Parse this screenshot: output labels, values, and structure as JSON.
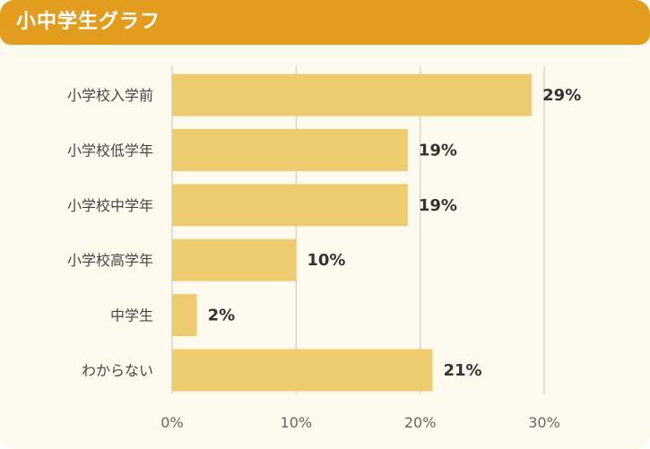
{
  "header": {
    "title": "小中学生グラフ"
  },
  "colors": {
    "accent": "#e29d1f",
    "bar": "#efcb70",
    "background": "#fefbee",
    "grid": "#d9d5c8"
  },
  "chart_data": {
    "type": "bar",
    "orientation": "horizontal",
    "categories": [
      "小学校入学前",
      "小学校低学年",
      "小学校中学年",
      "小学校高学年",
      "中学生",
      "わからない"
    ],
    "values": [
      29,
      19,
      19,
      10,
      2,
      21
    ],
    "value_labels": [
      "29%",
      "19%",
      "19%",
      "10%",
      "2%",
      "21%"
    ],
    "xlim": [
      0,
      30
    ],
    "xticks": [
      0,
      10,
      20,
      30
    ],
    "xtick_labels": [
      "0%",
      "10%",
      "20%",
      "30%"
    ],
    "grid": true,
    "title": "小中学生グラフ"
  }
}
